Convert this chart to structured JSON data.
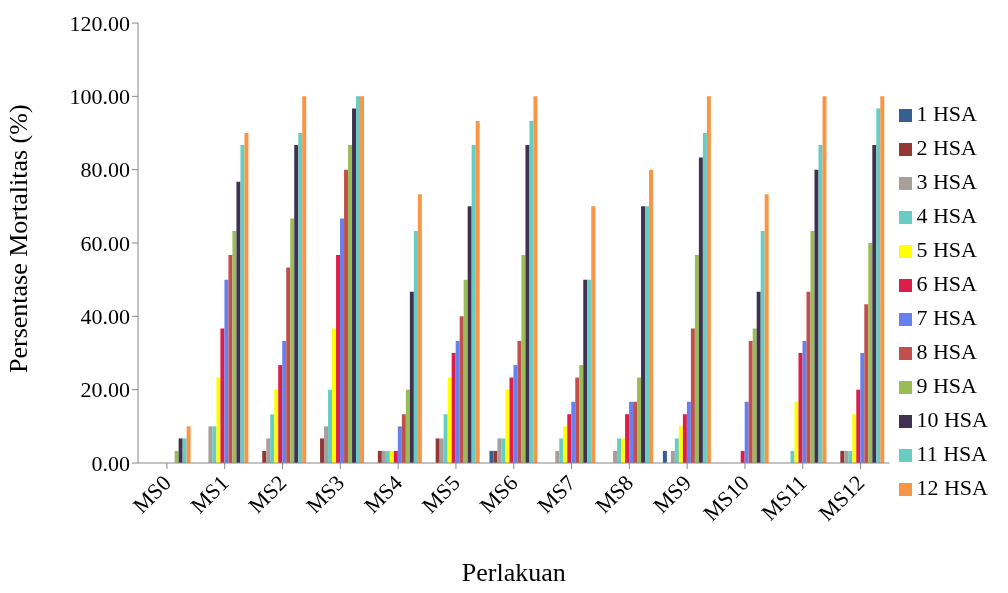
{
  "chart_data": {
    "type": "bar",
    "xlabel": "Perlakuan",
    "ylabel": "Persentase Mortalitas (%)",
    "categories": [
      "MS0",
      "MS1",
      "MS2",
      "MS3",
      "MS4",
      "MS5",
      "MS6",
      "MS7",
      "MS8",
      "MS9",
      "MS10",
      "MS11",
      "MS12"
    ],
    "series": [
      {
        "name": "1 HSA",
        "color": "#376092",
        "values": [
          0,
          0,
          0,
          0,
          0,
          0,
          3.3,
          0,
          0,
          3.3,
          0,
          0,
          0
        ]
      },
      {
        "name": "2 HSA",
        "color": "#953735",
        "values": [
          0,
          0,
          3.3,
          6.7,
          3.3,
          6.7,
          3.3,
          0,
          0,
          0,
          0,
          0,
          3.3
        ]
      },
      {
        "name": "3 HSA",
        "color": "#a89e9b",
        "values": [
          0,
          10,
          6.7,
          10,
          3.3,
          6.7,
          6.7,
          3.3,
          3.3,
          3.3,
          0,
          0,
          3.3
        ]
      },
      {
        "name": "4 HSA",
        "color": "#66ccc4",
        "values": [
          0,
          10,
          13.3,
          20,
          3.3,
          13.3,
          6.7,
          6.7,
          6.7,
          6.7,
          0,
          3.3,
          3.3
        ]
      },
      {
        "name": "5 HSA",
        "color": "#ffff00",
        "values": [
          0,
          23.3,
          20,
          36.7,
          3.3,
          23.3,
          20,
          10,
          6.7,
          10,
          0,
          16.7,
          13.3
        ]
      },
      {
        "name": "6 HSA",
        "color": "#dc1e4a",
        "values": [
          0,
          36.7,
          26.7,
          56.7,
          3.3,
          30,
          23.3,
          13.3,
          13.3,
          13.3,
          3.3,
          30,
          20
        ]
      },
      {
        "name": "7 HSA",
        "color": "#6680ee",
        "values": [
          0,
          50,
          33.3,
          66.7,
          10,
          33.3,
          26.7,
          16.7,
          16.7,
          16.7,
          16.7,
          33.3,
          30
        ]
      },
      {
        "name": "8 HSA",
        "color": "#c0504d",
        "values": [
          0,
          56.7,
          53.3,
          80,
          13.3,
          40,
          33.3,
          23.3,
          16.7,
          36.7,
          33.3,
          46.7,
          43.3
        ]
      },
      {
        "name": "9 HSA",
        "color": "#9bbb59",
        "values": [
          3.3,
          63.3,
          66.7,
          86.7,
          20,
          50,
          56.7,
          26.7,
          23.3,
          56.7,
          36.7,
          63.3,
          60
        ]
      },
      {
        "name": "10 HSA",
        "color": "#403151",
        "values": [
          6.7,
          76.7,
          86.7,
          96.7,
          46.7,
          70,
          86.7,
          50,
          70,
          83.3,
          46.7,
          80,
          86.7
        ]
      },
      {
        "name": "11 HSA",
        "color": "#66ccc4",
        "values": [
          6.7,
          86.7,
          90,
          100,
          63.3,
          86.7,
          93.3,
          50,
          70,
          90,
          63.3,
          86.7,
          96.7
        ]
      },
      {
        "name": "12 HSA",
        "color": "#f79646",
        "values": [
          10,
          90,
          100,
          100,
          73.3,
          93.3,
          100,
          70,
          80,
          100,
          73.3,
          100,
          100
        ]
      }
    ],
    "ylim": [
      0,
      120
    ],
    "yticks": [
      {
        "value": 0,
        "label": "0.00"
      },
      {
        "value": 20,
        "label": "20.00"
      },
      {
        "value": 40,
        "label": "40.00"
      },
      {
        "value": 60,
        "label": "60.00"
      },
      {
        "value": 80,
        "label": "80.00"
      },
      {
        "value": 100,
        "label": "100.00"
      },
      {
        "value": 120,
        "label": "120.00"
      }
    ],
    "grid": false,
    "legend": "right"
  }
}
